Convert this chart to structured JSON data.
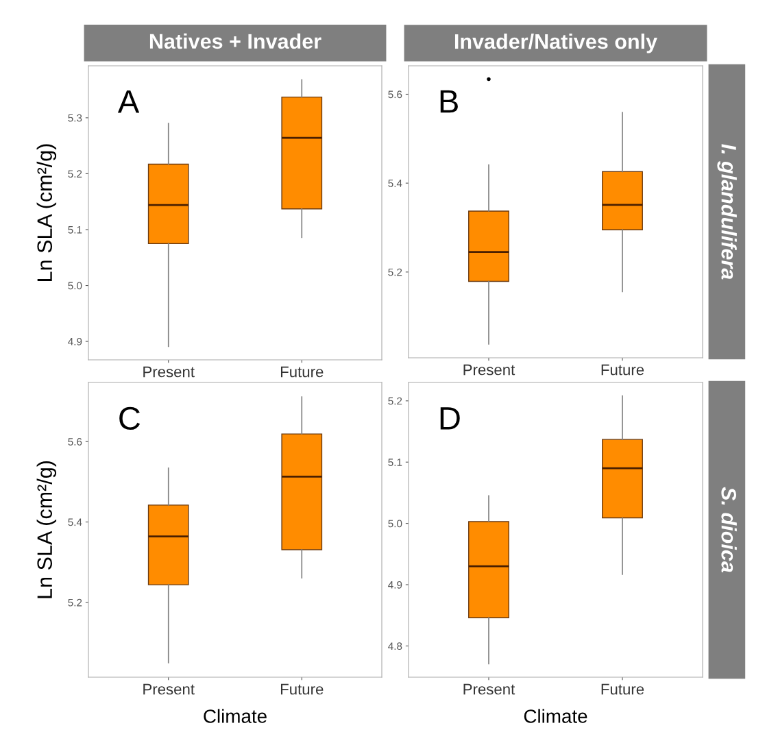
{
  "chart_data": [
    {
      "type": "box",
      "title": "Natives + Invader",
      "ylabel": "Ln SLA (cm²/g)",
      "categories": [
        "Present",
        "Future"
      ],
      "color": "#ff8c00",
      "ylim": [
        4.867,
        5.393
      ],
      "yticks": [
        {
          "value": 4.9,
          "label": "4.9"
        },
        {
          "value": 5.0,
          "label": "5.0"
        },
        {
          "value": 5.1,
          "label": "5.1"
        },
        {
          "value": 5.2,
          "label": "5.2"
        },
        {
          "value": 5.3,
          "label": "5.3"
        }
      ],
      "annotations": [
        "A"
      ],
      "boxes": [
        {
          "low": 4.891,
          "q1": 5.075,
          "median": 5.144,
          "q3": 5.217,
          "high": 5.29
        },
        {
          "low": 5.086,
          "q1": 5.137,
          "median": 5.264,
          "q3": 5.337,
          "high": 5.368
        }
      ]
    },
    {
      "type": "box",
      "title": "Invader/Natives only",
      "y2label": "I. glandulifera",
      "categories": [
        "Present",
        "Future"
      ],
      "color": "#ff8c00",
      "ylim": [
        5.007,
        5.664
      ],
      "yticks": [
        {
          "value": 5.2,
          "label": "5.2"
        },
        {
          "value": 5.4,
          "label": "5.4"
        },
        {
          "value": 5.6,
          "label": "5.6"
        }
      ],
      "annotations": [
        "B"
      ],
      "boxes": [
        {
          "low": 5.038,
          "q1": 5.179,
          "median": 5.245,
          "q3": 5.337,
          "high": 5.441,
          "outliers": [
            5.634
          ]
        },
        {
          "low": 5.156,
          "q1": 5.295,
          "median": 5.351,
          "q3": 5.426,
          "high": 5.559
        }
      ]
    },
    {
      "type": "box",
      "ylabel": "Ln SLA (cm²/g)",
      "xlabel": "Climate",
      "categories": [
        "Present",
        "Future"
      ],
      "color": "#ff8c00",
      "ylim": [
        5.014,
        5.747
      ],
      "yticks": [
        {
          "value": 5.2,
          "label": "5.2"
        },
        {
          "value": 5.4,
          "label": "5.4"
        },
        {
          "value": 5.6,
          "label": "5.6"
        }
      ],
      "annotations": [
        "C"
      ],
      "boxes": [
        {
          "low": 5.05,
          "q1": 5.244,
          "median": 5.364,
          "q3": 5.442,
          "high": 5.534
        },
        {
          "low": 5.261,
          "q1": 5.331,
          "median": 5.513,
          "q3": 5.619,
          "high": 5.711
        }
      ]
    },
    {
      "type": "box",
      "xlabel": "Climate",
      "y2label": "S. dioica",
      "categories": [
        "Present",
        "Future"
      ],
      "color": "#ff8c00",
      "ylim": [
        4.749,
        5.23
      ],
      "yticks": [
        {
          "value": 4.8,
          "label": "4.8"
        },
        {
          "value": 4.9,
          "label": "4.9"
        },
        {
          "value": 5.0,
          "label": "5.0"
        },
        {
          "value": 5.1,
          "label": "5.1"
        },
        {
          "value": 5.2,
          "label": "5.2"
        }
      ],
      "annotations": [
        "D"
      ],
      "boxes": [
        {
          "low": 4.771,
          "q1": 4.846,
          "median": 4.93,
          "q3": 5.003,
          "high": 5.045
        },
        {
          "low": 4.917,
          "q1": 5.009,
          "median": 5.09,
          "q3": 5.137,
          "high": 5.208
        }
      ]
    }
  ]
}
